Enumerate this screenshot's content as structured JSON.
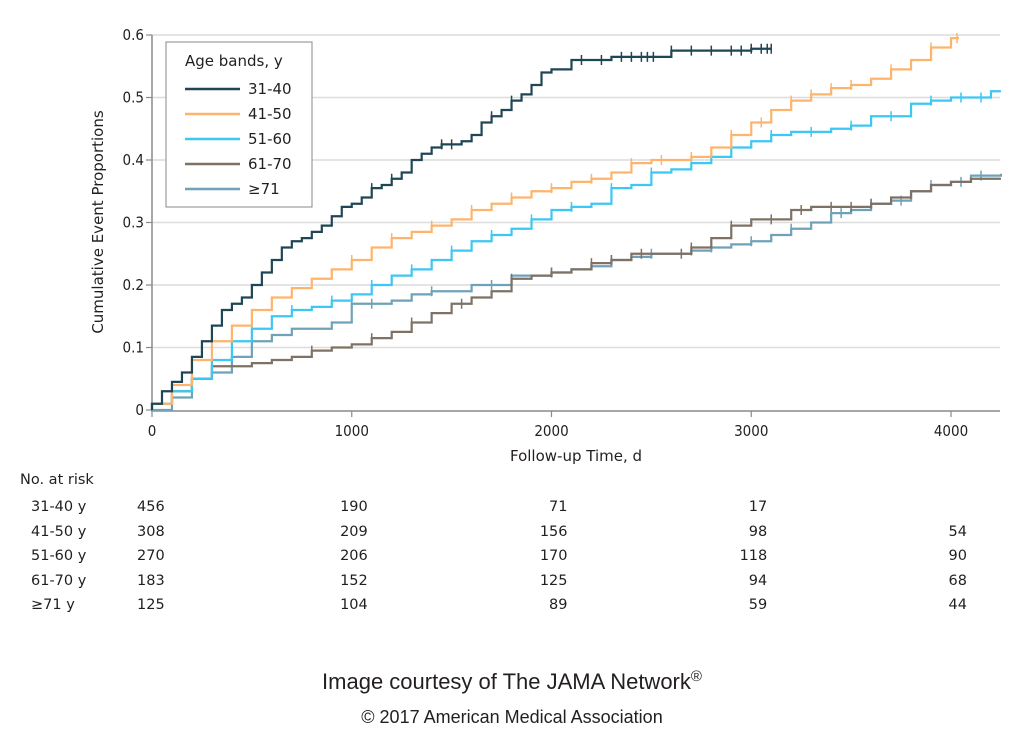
{
  "chart_data": {
    "type": "line",
    "subtype": "kaplan-meier cumulative incidence (step)",
    "title": "",
    "xlabel": "Follow-up Time, d",
    "ylabel": "Cumulative Event Proportions",
    "xlim": [
      0,
      4250
    ],
    "ylim": [
      0,
      0.6
    ],
    "xticks": [
      0,
      1000,
      2000,
      3000,
      4000
    ],
    "xtick_labels": [
      "0",
      "1000",
      "2000",
      "3000",
      "4000"
    ],
    "yticks": [
      0,
      0.1,
      0.2,
      0.3,
      0.4,
      0.5,
      0.6
    ],
    "ytick_labels": [
      "0",
      "0.1",
      "0.2",
      "0.3",
      "0.4",
      "0.5",
      "0.6"
    ],
    "grid": "horizontal",
    "legend": {
      "title": "Age bands, y",
      "position": "top-left"
    },
    "series": [
      {
        "name": "31-40",
        "color": "#1f4655",
        "x": [
          0,
          50,
          100,
          150,
          200,
          250,
          300,
          350,
          400,
          450,
          500,
          550,
          600,
          650,
          700,
          750,
          800,
          850,
          900,
          950,
          1000,
          1050,
          1100,
          1150,
          1200,
          1250,
          1300,
          1350,
          1400,
          1450,
          1500,
          1550,
          1600,
          1650,
          1700,
          1750,
          1800,
          1850,
          1900,
          1950,
          2000,
          2050,
          2100,
          2300,
          2600,
          3000,
          3100
        ],
        "y": [
          0.01,
          0.03,
          0.045,
          0.06,
          0.085,
          0.11,
          0.135,
          0.16,
          0.17,
          0.18,
          0.2,
          0.22,
          0.24,
          0.26,
          0.27,
          0.275,
          0.285,
          0.295,
          0.31,
          0.325,
          0.33,
          0.34,
          0.355,
          0.36,
          0.37,
          0.38,
          0.4,
          0.41,
          0.42,
          0.425,
          0.425,
          0.43,
          0.44,
          0.46,
          0.47,
          0.48,
          0.495,
          0.505,
          0.52,
          0.54,
          0.545,
          0.545,
          0.56,
          0.565,
          0.575,
          0.578,
          0.578
        ],
        "censor_x": [
          1100,
          1200,
          1450,
          1500,
          1700,
          1800,
          2150,
          2250,
          2350,
          2400,
          2450,
          2480,
          2510,
          2600,
          2700,
          2800,
          2900,
          2950,
          3000,
          3050,
          3080,
          3100
        ]
      },
      {
        "name": "41-50",
        "color": "#fdb46c",
        "x": [
          0,
          100,
          200,
          300,
          400,
          500,
          600,
          700,
          800,
          900,
          1000,
          1100,
          1200,
          1300,
          1400,
          1500,
          1600,
          1700,
          1800,
          1900,
          2000,
          2100,
          2200,
          2300,
          2400,
          2500,
          2600,
          2700,
          2800,
          2900,
          3000,
          3100,
          3200,
          3300,
          3400,
          3500,
          3600,
          3700,
          3800,
          3900,
          4000,
          4040
        ],
        "y": [
          0.01,
          0.04,
          0.08,
          0.11,
          0.135,
          0.16,
          0.18,
          0.195,
          0.21,
          0.225,
          0.24,
          0.26,
          0.275,
          0.285,
          0.295,
          0.305,
          0.32,
          0.33,
          0.34,
          0.35,
          0.355,
          0.365,
          0.37,
          0.38,
          0.395,
          0.4,
          0.4,
          0.405,
          0.42,
          0.44,
          0.46,
          0.48,
          0.495,
          0.505,
          0.515,
          0.52,
          0.53,
          0.545,
          0.56,
          0.58,
          0.595,
          0.595
        ],
        "censor_x": [
          1000,
          1200,
          1400,
          1600,
          1800,
          2000,
          2200,
          2400,
          2550,
          2700,
          2900,
          3050,
          3200,
          3300,
          3400,
          3500,
          3700,
          3900,
          4030
        ]
      },
      {
        "name": "51-60",
        "color": "#3cc7f4",
        "x": [
          0,
          100,
          200,
          300,
          400,
          500,
          600,
          700,
          800,
          900,
          1000,
          1100,
          1200,
          1300,
          1400,
          1500,
          1600,
          1700,
          1800,
          1900,
          2000,
          2100,
          2200,
          2300,
          2400,
          2500,
          2600,
          2700,
          2800,
          2900,
          3000,
          3100,
          3200,
          3300,
          3400,
          3500,
          3600,
          3700,
          3800,
          3900,
          4000,
          4200,
          4250
        ],
        "y": [
          0.01,
          0.03,
          0.05,
          0.08,
          0.11,
          0.13,
          0.15,
          0.16,
          0.165,
          0.175,
          0.185,
          0.2,
          0.215,
          0.225,
          0.24,
          0.255,
          0.27,
          0.28,
          0.29,
          0.305,
          0.32,
          0.325,
          0.33,
          0.355,
          0.36,
          0.38,
          0.385,
          0.395,
          0.405,
          0.42,
          0.43,
          0.44,
          0.445,
          0.445,
          0.45,
          0.455,
          0.47,
          0.47,
          0.49,
          0.495,
          0.5,
          0.51,
          0.51
        ],
        "censor_x": [
          500,
          700,
          900,
          1100,
          1300,
          1500,
          1700,
          1900,
          2100,
          2300,
          2500,
          2700,
          2900,
          3100,
          3300,
          3500,
          3700,
          3900,
          4050,
          4150
        ]
      },
      {
        "name": "61-70",
        "color": "#7f7265",
        "x": [
          0,
          100,
          200,
          300,
          400,
          500,
          600,
          700,
          800,
          900,
          1000,
          1100,
          1200,
          1300,
          1400,
          1500,
          1600,
          1700,
          1800,
          1900,
          2000,
          2100,
          2200,
          2300,
          2400,
          2500,
          2600,
          2700,
          2800,
          2900,
          3000,
          3100,
          3200,
          3300,
          3400,
          3500,
          3600,
          3700,
          3800,
          3900,
          4000,
          4100,
          4250
        ],
        "y": [
          0.01,
          0.03,
          0.05,
          0.07,
          0.07,
          0.075,
          0.08,
          0.085,
          0.095,
          0.1,
          0.105,
          0.115,
          0.125,
          0.14,
          0.155,
          0.17,
          0.18,
          0.19,
          0.21,
          0.215,
          0.22,
          0.225,
          0.235,
          0.24,
          0.25,
          0.25,
          0.25,
          0.26,
          0.275,
          0.295,
          0.305,
          0.305,
          0.32,
          0.325,
          0.325,
          0.325,
          0.33,
          0.34,
          0.35,
          0.36,
          0.365,
          0.37,
          0.37
        ],
        "censor_x": [
          800,
          1100,
          1300,
          1550,
          1800,
          2000,
          2200,
          2300,
          2450,
          2650,
          2700,
          2900,
          3100,
          3250,
          3400,
          3500,
          3600
        ]
      },
      {
        "name": "≥71",
        "color": "#6fa2b8",
        "x": [
          0,
          100,
          200,
          300,
          400,
          500,
          600,
          700,
          800,
          900,
          1000,
          1100,
          1200,
          1300,
          1400,
          1500,
          1600,
          1700,
          1800,
          1900,
          2000,
          2100,
          2200,
          2300,
          2400,
          2500,
          2600,
          2700,
          2800,
          2900,
          3000,
          3100,
          3200,
          3300,
          3400,
          3500,
          3600,
          3700,
          3800,
          3900,
          4000,
          4100,
          4250
        ],
        "y": [
          0.0,
          0.02,
          0.05,
          0.06,
          0.085,
          0.11,
          0.12,
          0.13,
          0.13,
          0.14,
          0.17,
          0.17,
          0.175,
          0.185,
          0.19,
          0.19,
          0.2,
          0.2,
          0.215,
          0.215,
          0.22,
          0.225,
          0.23,
          0.24,
          0.245,
          0.25,
          0.25,
          0.255,
          0.26,
          0.265,
          0.27,
          0.28,
          0.29,
          0.3,
          0.315,
          0.32,
          0.33,
          0.335,
          0.35,
          0.36,
          0.365,
          0.375,
          0.378
        ],
        "censor_x": [
          1000,
          1100,
          1400,
          1700,
          2000,
          2300,
          2500,
          2700,
          2800,
          3000,
          3200,
          3450,
          3600,
          3750,
          3900,
          4050,
          4150
        ]
      }
    ],
    "risk_table": {
      "title": "No. at risk",
      "time_points": [
        0,
        1000,
        2000,
        3000,
        4000
      ],
      "rows": [
        {
          "label": "31-40 y",
          "values": [
            "456",
            "190",
            "71",
            "17",
            ""
          ]
        },
        {
          "label": "41-50 y",
          "values": [
            "308",
            "209",
            "156",
            "98",
            "54"
          ]
        },
        {
          "label": "51-60 y",
          "values": [
            "270",
            "206",
            "170",
            "118",
            "90"
          ]
        },
        {
          "label": "61-70 y",
          "values": [
            "183",
            "152",
            "125",
            "94",
            "68"
          ]
        },
        {
          "label": "≥71 y",
          "values": [
            "125",
            "104",
            "89",
            "59",
            "44"
          ]
        }
      ]
    }
  },
  "credit": {
    "line1": "Image courtesy of The JAMA Network",
    "line1_mark": "®",
    "line2": "© 2017 American Medical Association"
  }
}
